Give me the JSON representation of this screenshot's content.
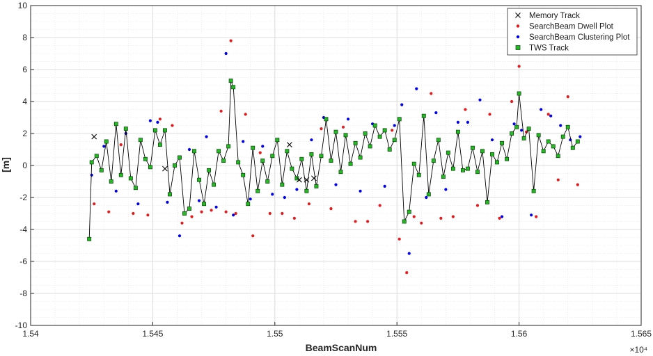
{
  "chart_data": {
    "type": "scatter",
    "xlabel": "BeamScanNum",
    "ylabel": "[m]",
    "x_exponent_label": "×10⁴",
    "xlim": [
      1.54,
      1.565
    ],
    "ylim": [
      -10,
      10
    ],
    "x_ticks": [
      "1.54",
      "1.545",
      "1.55",
      "1.555",
      "1.56",
      "1.565"
    ],
    "y_ticks": [
      "10",
      "8",
      "6",
      "4",
      "2",
      "0",
      "-2",
      "-4",
      "-6",
      "-8",
      "-10"
    ],
    "grid": true,
    "minor_grid": true,
    "legend_position": "top-right",
    "series": [
      {
        "name": "Memory Track",
        "marker": "x",
        "color": "#000000",
        "x": [
          1.5426,
          1.5455,
          1.5506,
          1.551,
          1.5513,
          1.5516
        ],
        "y": [
          1.8,
          -0.2,
          1.3,
          -0.9,
          -0.9,
          -0.8
        ]
      },
      {
        "name": "SearchBeam Dwell Plot",
        "marker": "dot",
        "color": "#e41a1c",
        "x": [
          1.5426,
          1.5432,
          1.5437,
          1.5442,
          1.5448,
          1.5453,
          1.5458,
          1.5462,
          1.5466,
          1.547,
          1.5474,
          1.5478,
          1.548,
          1.5482,
          1.5484,
          1.5488,
          1.5491,
          1.5494,
          1.5498,
          1.5503,
          1.5508,
          1.5514,
          1.5519,
          1.5523,
          1.5528,
          1.5533,
          1.5538,
          1.5543,
          1.5548,
          1.5551,
          1.5554,
          1.5557,
          1.556,
          1.5564,
          1.5568,
          1.5573,
          1.5578,
          1.5583,
          1.5588,
          1.5592,
          1.5597,
          1.56,
          1.5603,
          1.5607,
          1.5612,
          1.5616,
          1.562,
          1.5624
        ],
        "y": [
          -2.4,
          -2.9,
          1.3,
          -3.0,
          -3.1,
          2.9,
          2.5,
          -3.6,
          -3.2,
          -2.9,
          -2.8,
          3.4,
          -2.9,
          7.8,
          -3.0,
          3.2,
          -4.4,
          0.8,
          -3.0,
          -3.0,
          -3.3,
          -2.4,
          2.3,
          -2.7,
          2.4,
          -3.5,
          -3.5,
          -2.5,
          2.2,
          -4.6,
          -6.7,
          -3.2,
          -3.6,
          4.5,
          -3.3,
          -3.2,
          3.5,
          -2.5,
          3.2,
          -3.3,
          4.0,
          6.2,
          2.1,
          -3.2,
          3.2,
          -0.9,
          4.3,
          -1.2
        ]
      },
      {
        "name": "SearchBeam Clustering Plot",
        "marker": "dot",
        "color": "#0000ee",
        "x": [
          1.5425,
          1.543,
          1.5435,
          1.5439,
          1.5444,
          1.5449,
          1.5452,
          1.5456,
          1.5461,
          1.5465,
          1.5469,
          1.5472,
          1.5476,
          1.548,
          1.5483,
          1.5487,
          1.549,
          1.5495,
          1.5499,
          1.5504,
          1.5509,
          1.5515,
          1.552,
          1.5525,
          1.553,
          1.5535,
          1.554,
          1.5545,
          1.5549,
          1.5552,
          1.5555,
          1.5558,
          1.5562,
          1.5566,
          1.557,
          1.5575,
          1.5579,
          1.5584,
          1.5589,
          1.5593,
          1.5598,
          1.5601,
          1.5605,
          1.5609,
          1.5613,
          1.5617,
          1.5621,
          1.5625
        ],
        "y": [
          -0.6,
          1.2,
          -1.6,
          2.0,
          -2.4,
          2.8,
          2.7,
          -2.3,
          -4.4,
          1.0,
          -2.2,
          1.8,
          -2.6,
          7.0,
          -3.1,
          1.5,
          -2.1,
          1.2,
          -1.8,
          -2.0,
          -1.5,
          1.6,
          3.0,
          -1.2,
          2.9,
          -1.6,
          2.6,
          -1.3,
          2.5,
          3.8,
          -5.5,
          4.8,
          -2.0,
          3.3,
          -1.5,
          2.7,
          2.7,
          4.1,
          1.6,
          -3.2,
          2.6,
          2.2,
          -3.1,
          3.5,
          3.1,
          2.5,
          1.6,
          1.8
        ]
      },
      {
        "name": "TWS Track",
        "marker": "square",
        "color": "#22bb22",
        "x": [
          1.5424,
          1.5425,
          1.5427,
          1.5429,
          1.5431,
          1.5433,
          1.5435,
          1.5437,
          1.5439,
          1.5441,
          1.5443,
          1.5445,
          1.5447,
          1.5449,
          1.5451,
          1.5453,
          1.5455,
          1.5457,
          1.5459,
          1.5461,
          1.5463,
          1.5465,
          1.5467,
          1.5469,
          1.5471,
          1.5473,
          1.5475,
          1.5477,
          1.5479,
          1.5481,
          1.5482,
          1.5483,
          1.5485,
          1.5487,
          1.5489,
          1.5491,
          1.5493,
          1.5495,
          1.5497,
          1.5499,
          1.5501,
          1.5503,
          1.5505,
          1.5507,
          1.5509,
          1.5511,
          1.5513,
          1.5515,
          1.5517,
          1.5519,
          1.5521,
          1.5523,
          1.5525,
          1.5527,
          1.5529,
          1.5531,
          1.5533,
          1.5535,
          1.5537,
          1.5539,
          1.5541,
          1.5543,
          1.5545,
          1.5547,
          1.5549,
          1.5551,
          1.5553,
          1.5555,
          1.5557,
          1.5559,
          1.5561,
          1.5563,
          1.5565,
          1.5567,
          1.5569,
          1.5571,
          1.5573,
          1.5575,
          1.5577,
          1.5579,
          1.5581,
          1.5583,
          1.5585,
          1.5587,
          1.5589,
          1.5591,
          1.5593,
          1.5595,
          1.5597,
          1.5599,
          1.56,
          1.5602,
          1.5604,
          1.5606,
          1.5608,
          1.561,
          1.5612,
          1.5614,
          1.5616,
          1.5618,
          1.562,
          1.5622,
          1.5624
        ],
        "y": [
          -4.6,
          0.2,
          0.6,
          -0.3,
          1.5,
          -1.0,
          2.6,
          -0.6,
          2.3,
          -0.8,
          -1.4,
          1.6,
          0.4,
          -0.1,
          2.2,
          1.3,
          2.2,
          -1.8,
          0.0,
          0.5,
          -3.0,
          -2.7,
          0.9,
          -0.9,
          -2.4,
          -0.3,
          -1.2,
          0.9,
          0.3,
          1.2,
          5.3,
          4.9,
          0.2,
          -0.6,
          -2.4,
          1.1,
          -1.6,
          0.3,
          -1.0,
          0.6,
          1.6,
          -1.2,
          0.9,
          -0.2,
          -0.8,
          0.4,
          -1.6,
          0.7,
          -1.3,
          0.6,
          2.9,
          0.3,
          2.1,
          -0.4,
          1.9,
          0.1,
          1.4,
          0.5,
          2.0,
          1.2,
          2.5,
          1.8,
          2.2,
          1.0,
          1.6,
          2.9,
          -3.5,
          -2.9,
          0.1,
          -0.6,
          3.1,
          -1.8,
          0.3,
          1.6,
          -0.7,
          0.8,
          -0.2,
          2.1,
          -0.3,
          -0.2,
          1.1,
          -0.4,
          0.9,
          -2.3,
          0.7,
          0.2,
          1.4,
          0.4,
          2.0,
          2.4,
          4.5,
          1.7,
          2.3,
          -1.6,
          1.9,
          0.9,
          1.5,
          1.2,
          0.6,
          1.8,
          2.4,
          1.1,
          1.5
        ]
      }
    ]
  }
}
